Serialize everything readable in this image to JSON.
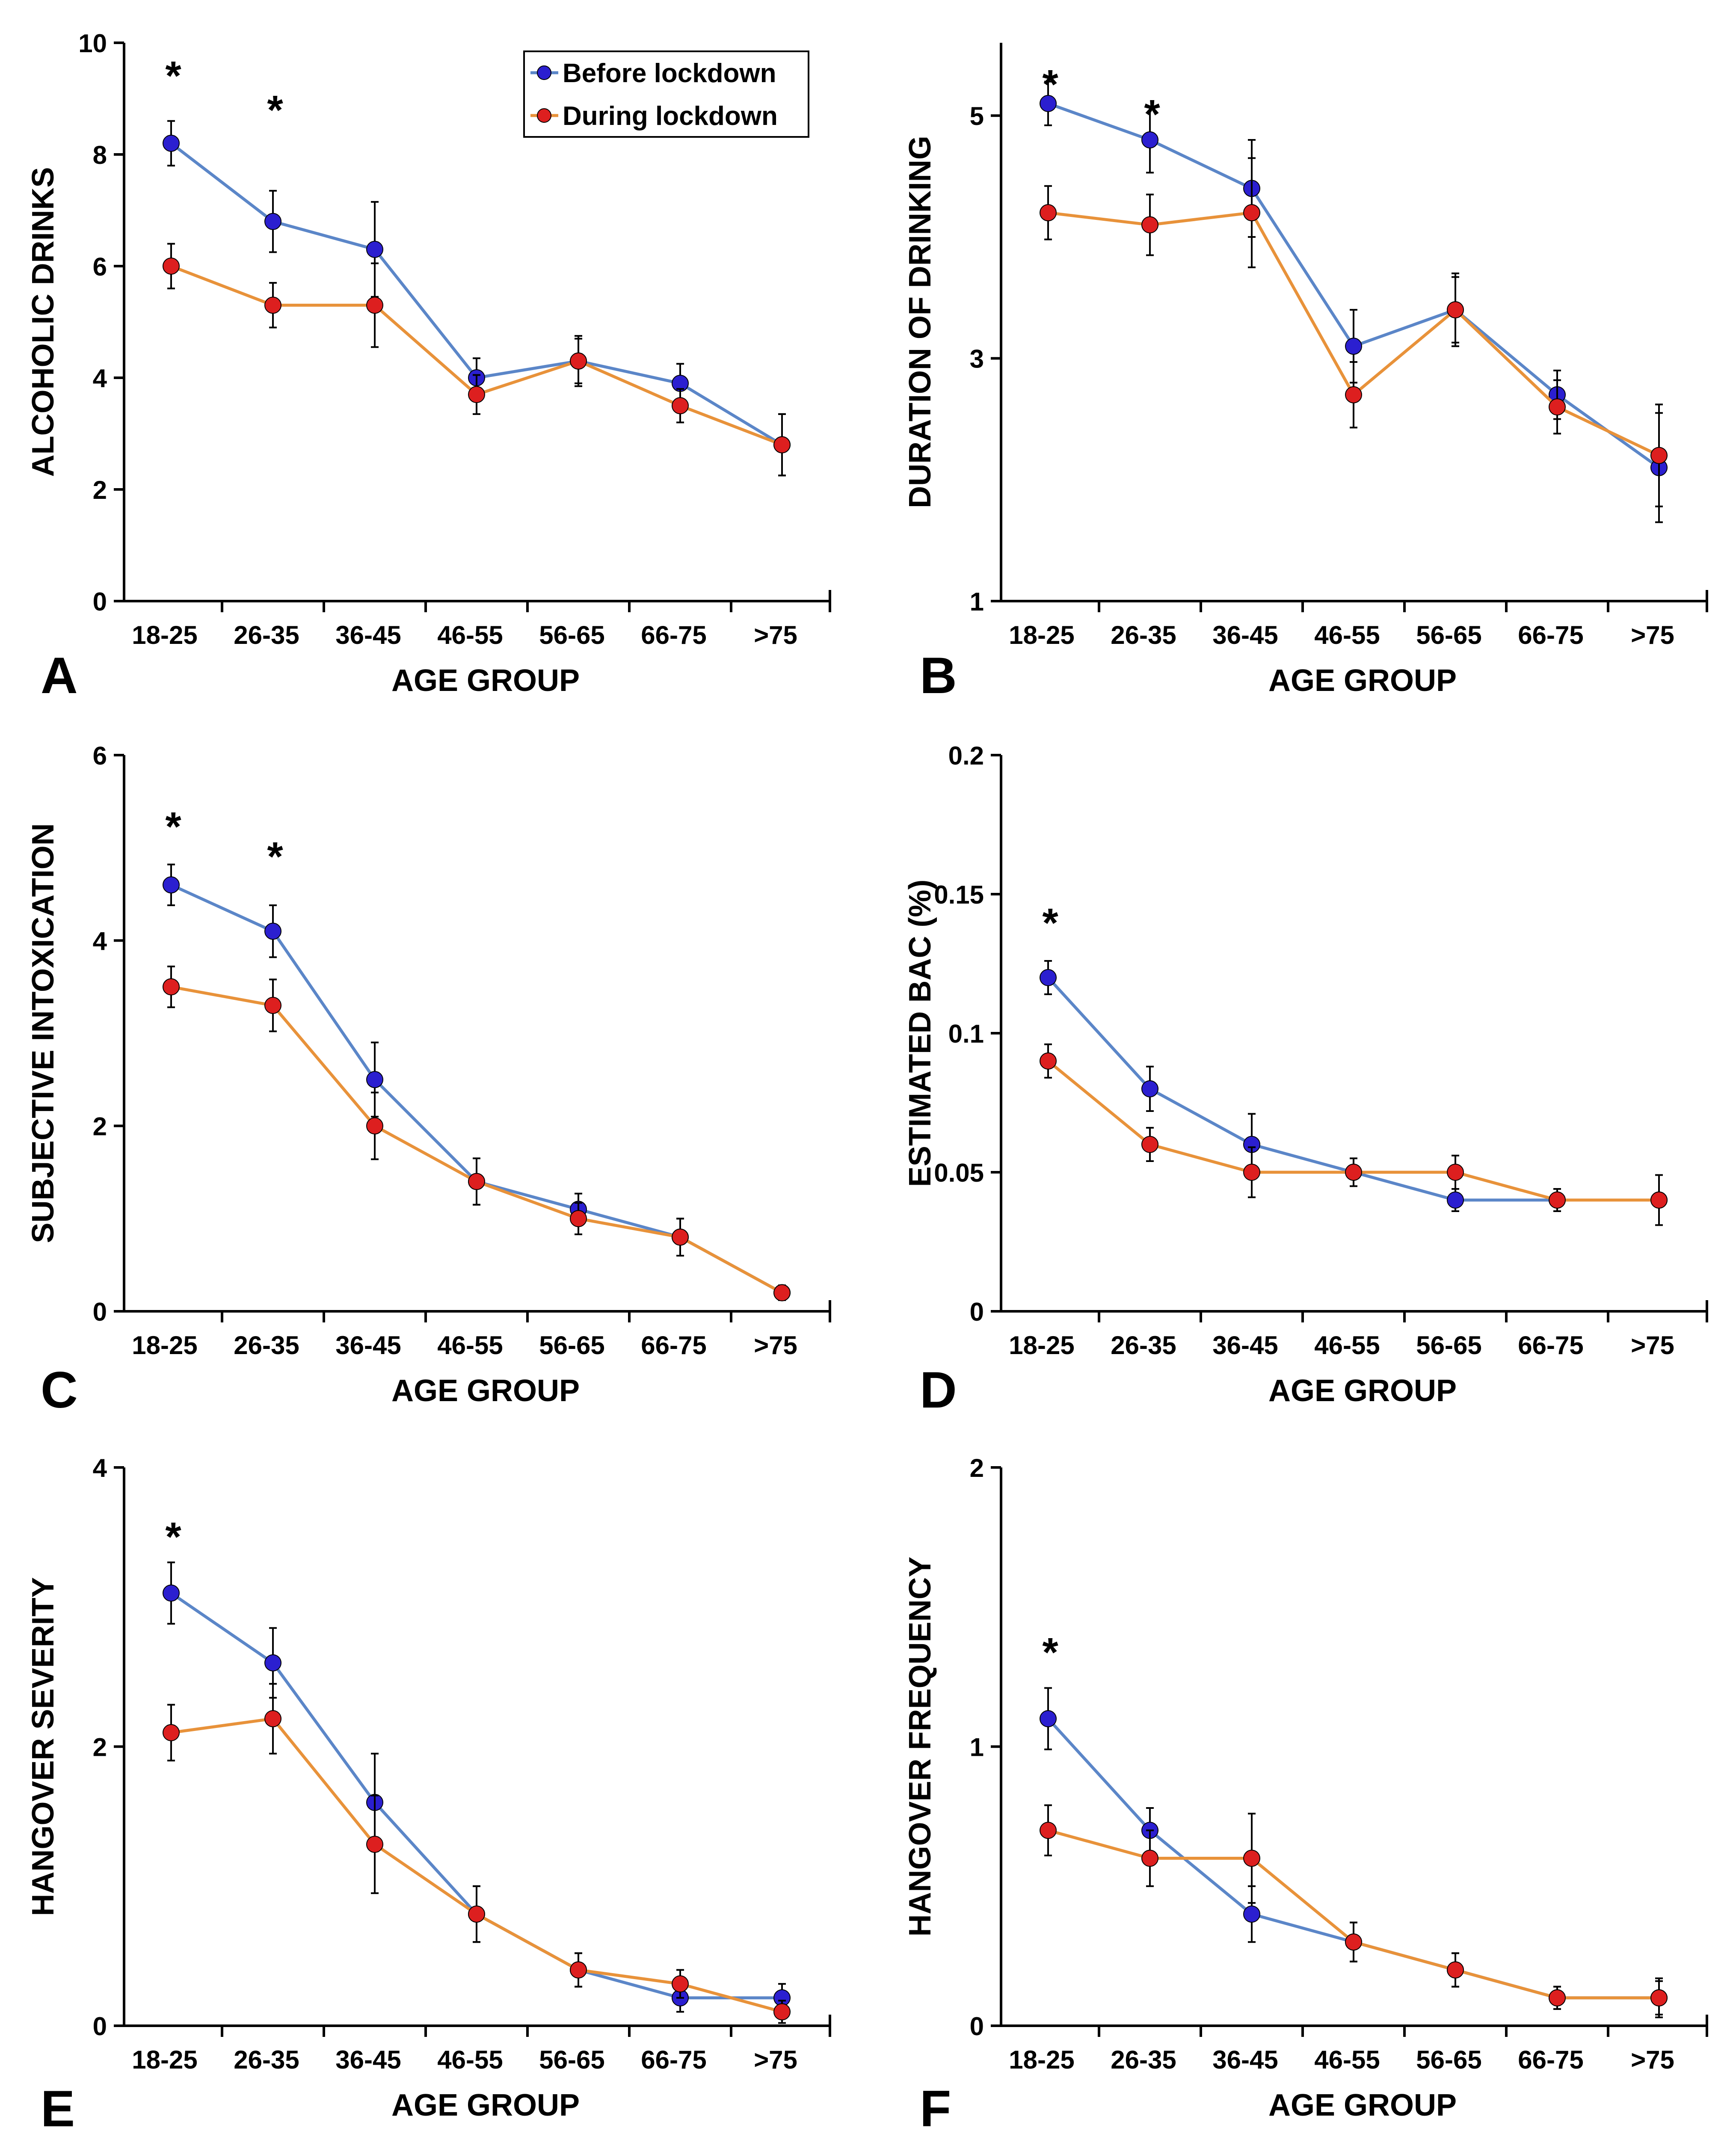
{
  "figure": {
    "legend": {
      "before_label": "Before lockdown",
      "during_label": "During lockdown"
    }
  },
  "colors": {
    "before_marker": "#2b1fd0",
    "before_line": "#5b86c8",
    "during_marker": "#dd1f1f",
    "during_line": "#e8923a",
    "axis": "#000000"
  },
  "chart_data": [
    {
      "type": "line",
      "panel": "A",
      "title": "",
      "xlabel": "AGE GROUP",
      "ylabel": "ALCOHOLIC DRINKS",
      "categories": [
        "18-25",
        "26-35",
        "36-45",
        "46-55",
        "56-65",
        "66-75",
        ">75"
      ],
      "ylim": [
        0,
        10
      ],
      "yticks": [
        0,
        2,
        4,
        6,
        8,
        10
      ],
      "ytick_labels": [
        "0",
        "2",
        "4",
        "6",
        "8",
        "10"
      ],
      "legend": "top-right",
      "significance": [
        "*",
        "*",
        "",
        "",
        "",
        "",
        ""
      ],
      "series": [
        {
          "name": "Before lockdown",
          "values": [
            8.2,
            6.8,
            6.3,
            4.0,
            4.3,
            3.9,
            2.8
          ],
          "errors": [
            0.4,
            0.55,
            0.85,
            0.35,
            0.45,
            0.35,
            0.55
          ]
        },
        {
          "name": "During lockdown",
          "values": [
            6.0,
            5.3,
            5.3,
            3.7,
            4.3,
            3.5,
            2.8
          ],
          "errors": [
            0.4,
            0.4,
            0.75,
            0.35,
            0.4,
            0.3,
            0.55
          ]
        }
      ]
    },
    {
      "type": "line",
      "panel": "B",
      "title": "",
      "xlabel": "AGE GROUP",
      "ylabel": "DURATION OF DRINKING",
      "categories": [
        "18-25",
        "26-35",
        "36-45",
        "46-55",
        "56-65",
        "66-75",
        ">75"
      ],
      "ylim": [
        1,
        5.6
      ],
      "yticks": [
        1,
        3,
        5
      ],
      "ytick_labels": [
        "1",
        "3",
        "5"
      ],
      "significance": [
        "*",
        "*",
        "",
        "",
        "",
        "",
        ""
      ],
      "series": [
        {
          "name": "Before lockdown",
          "values": [
            5.1,
            4.8,
            4.4,
            3.1,
            3.4,
            2.7,
            2.1
          ],
          "errors": [
            0.18,
            0.27,
            0.4,
            0.3,
            0.27,
            0.2,
            0.45
          ]
        },
        {
          "name": "During lockdown",
          "values": [
            4.2,
            4.1,
            4.2,
            2.7,
            3.4,
            2.6,
            2.2
          ],
          "errors": [
            0.22,
            0.25,
            0.45,
            0.27,
            0.3,
            0.22,
            0.42
          ]
        }
      ]
    },
    {
      "type": "line",
      "panel": "C",
      "title": "",
      "xlabel": "AGE GROUP",
      "ylabel": "SUBJECTIVE INTOXICATION",
      "categories": [
        "18-25",
        "26-35",
        "36-45",
        "46-55",
        "56-65",
        "66-75",
        ">75"
      ],
      "ylim": [
        0,
        6
      ],
      "yticks": [
        0,
        2,
        4,
        6
      ],
      "ytick_labels": [
        "0",
        "2",
        "4",
        "6"
      ],
      "significance": [
        "*",
        "*",
        "",
        "",
        "",
        "",
        ""
      ],
      "series": [
        {
          "name": "Before lockdown",
          "values": [
            4.6,
            4.1,
            2.5,
            1.4,
            1.1,
            0.8,
            0.2
          ],
          "errors": [
            0.22,
            0.28,
            0.4,
            0.25,
            0.17,
            0.2,
            0.08
          ]
        },
        {
          "name": "During lockdown",
          "values": [
            3.5,
            3.3,
            2.0,
            1.4,
            1.0,
            0.8,
            0.2
          ],
          "errors": [
            0.22,
            0.28,
            0.36,
            0.25,
            0.17,
            0.2,
            0.08
          ]
        }
      ]
    },
    {
      "type": "line",
      "panel": "D",
      "title": "",
      "xlabel": "AGE GROUP",
      "ylabel": "ESTIMATED BAC (%)",
      "categories": [
        "18-25",
        "26-35",
        "36-45",
        "46-55",
        "56-65",
        "66-75",
        ">75"
      ],
      "ylim": [
        0,
        0.2
      ],
      "yticks": [
        0,
        0.05,
        0.1,
        0.15,
        0.2
      ],
      "ytick_labels": [
        "0",
        "0.05",
        "0.1",
        "0.15",
        "0.2"
      ],
      "significance": [
        "*",
        "",
        "",
        "",
        "",
        "",
        ""
      ],
      "series": [
        {
          "name": "Before lockdown",
          "values": [
            0.12,
            0.08,
            0.06,
            0.05,
            0.04,
            0.04,
            0.04
          ],
          "errors": [
            0.006,
            0.008,
            0.011,
            0.005,
            0.004,
            0.004,
            0.009
          ]
        },
        {
          "name": "During lockdown",
          "values": [
            0.09,
            0.06,
            0.05,
            0.05,
            0.05,
            0.04,
            0.04
          ],
          "errors": [
            0.006,
            0.006,
            0.009,
            0.005,
            0.006,
            0.004,
            0.009
          ]
        }
      ]
    },
    {
      "type": "line",
      "panel": "E",
      "title": "",
      "xlabel": "AGE GROUP",
      "ylabel": "HANGOVER SEVERITY",
      "categories": [
        "18-25",
        "26-35",
        "36-45",
        "46-55",
        "56-65",
        "66-75",
        ">75"
      ],
      "ylim": [
        0,
        4
      ],
      "yticks": [
        0,
        2,
        4
      ],
      "ytick_labels": [
        "0",
        "2",
        "4"
      ],
      "significance": [
        "*",
        "",
        "",
        "",
        "",
        "",
        ""
      ],
      "series": [
        {
          "name": "Before lockdown",
          "values": [
            3.1,
            2.6,
            1.6,
            0.8,
            0.4,
            0.2,
            0.2
          ],
          "errors": [
            0.22,
            0.25,
            0.35,
            0.2,
            0.12,
            0.1,
            0.1
          ]
        },
        {
          "name": "During lockdown",
          "values": [
            2.1,
            2.2,
            1.3,
            0.8,
            0.4,
            0.3,
            0.1
          ],
          "errors": [
            0.2,
            0.25,
            0.35,
            0.2,
            0.12,
            0.1,
            0.08
          ]
        }
      ]
    },
    {
      "type": "line",
      "panel": "F",
      "title": "",
      "xlabel": "AGE GROUP",
      "ylabel": "HANGOVER FREQUENCY",
      "categories": [
        "18-25",
        "26-35",
        "36-45",
        "46-55",
        "56-65",
        "66-75",
        ">75"
      ],
      "ylim": [
        0,
        2
      ],
      "yticks": [
        0,
        1,
        2
      ],
      "ytick_labels": [
        "0",
        "1",
        "2"
      ],
      "significance": [
        "*",
        "",
        "",
        "",
        "",
        "",
        ""
      ],
      "series": [
        {
          "name": "Before lockdown",
          "values": [
            1.1,
            0.7,
            0.4,
            0.3,
            0.2,
            0.1,
            0.1
          ],
          "errors": [
            0.11,
            0.08,
            0.1,
            0.07,
            0.06,
            0.04,
            0.06
          ]
        },
        {
          "name": "During lockdown",
          "values": [
            0.7,
            0.6,
            0.6,
            0.3,
            0.2,
            0.1,
            0.1
          ],
          "errors": [
            0.09,
            0.1,
            0.16,
            0.07,
            0.06,
            0.04,
            0.07
          ]
        }
      ]
    }
  ]
}
